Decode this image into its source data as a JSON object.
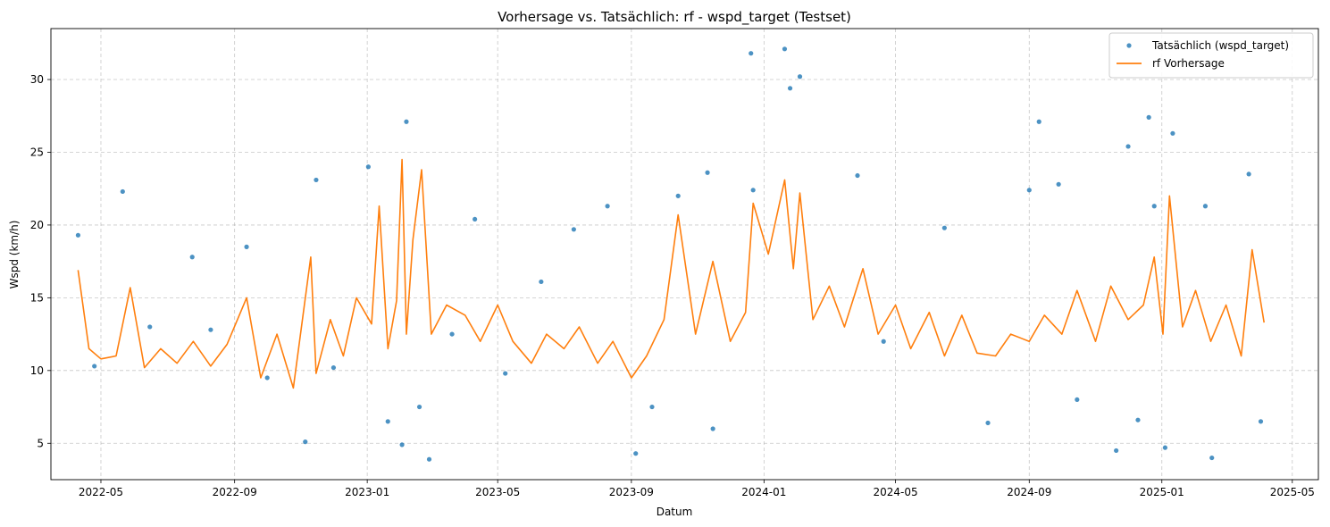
{
  "chart_data": {
    "type": "line",
    "title": "Vorhersage vs. Tatsächlich: rf - wspd_target (Testset)",
    "xlabel": "Datum",
    "ylabel": "Wspd (km/h)",
    "x_range": [
      "2022-03-16",
      "2025-05-25"
    ],
    "ylim": [
      2.5,
      33.5
    ],
    "x_ticks": [
      "2022-05",
      "2022-09",
      "2023-01",
      "2023-05",
      "2023-09",
      "2024-01",
      "2024-05",
      "2024-09",
      "2025-01",
      "2025-05"
    ],
    "x_tick_dates": [
      "2022-05-01",
      "2022-09-01",
      "2023-01-01",
      "2023-05-01",
      "2023-09-01",
      "2024-01-01",
      "2024-05-01",
      "2024-09-01",
      "2025-01-01",
      "2025-05-01"
    ],
    "y_ticks": [
      5,
      10,
      15,
      20,
      25,
      30
    ],
    "grid": true,
    "legend_position": "top-right",
    "series": [
      {
        "name": "Tatsächlich (wspd_target)",
        "kind": "scatter",
        "color": "#1f77b4",
        "x": [
          "2022-04-10",
          "2022-04-25",
          "2022-05-21",
          "2022-06-15",
          "2022-07-24",
          "2022-08-10",
          "2022-09-12",
          "2022-10-01",
          "2022-11-05",
          "2022-11-15",
          "2022-12-01",
          "2023-01-02",
          "2023-01-20",
          "2023-02-02",
          "2023-02-06",
          "2023-02-18",
          "2023-02-27",
          "2023-03-20",
          "2023-04-10",
          "2023-05-08",
          "2023-06-10",
          "2023-07-10",
          "2023-08-10",
          "2023-09-05",
          "2023-09-20",
          "2023-10-14",
          "2023-11-10",
          "2023-11-15",
          "2023-12-20",
          "2023-12-22",
          "2024-01-20",
          "2024-01-25",
          "2024-02-03",
          "2024-03-27",
          "2024-04-20",
          "2024-06-15",
          "2024-07-25",
          "2024-09-01",
          "2024-09-10",
          "2024-09-28",
          "2024-10-15",
          "2024-11-20",
          "2024-12-01",
          "2024-12-10",
          "2024-12-20",
          "2024-12-25",
          "2025-01-04",
          "2025-01-11",
          "2025-02-10",
          "2025-02-16",
          "2025-03-22",
          "2025-04-02"
        ],
        "y": [
          19.3,
          10.3,
          22.3,
          13.0,
          17.8,
          12.8,
          18.5,
          9.5,
          5.1,
          23.1,
          10.2,
          24.0,
          6.5,
          4.9,
          27.1,
          7.5,
          3.9,
          12.5,
          20.4,
          9.8,
          16.1,
          19.7,
          21.3,
          4.3,
          7.5,
          22.0,
          23.6,
          6.0,
          31.8,
          22.4,
          32.1,
          29.4,
          30.2,
          23.4,
          12.0,
          19.8,
          6.4,
          22.4,
          27.1,
          22.8,
          8.0,
          4.5,
          25.4,
          6.6,
          27.4,
          21.3,
          4.7,
          26.3,
          21.3,
          4.0,
          23.5,
          6.5
        ]
      },
      {
        "name": "rf Vorhersage",
        "kind": "line",
        "color": "#ff7f0e",
        "x": [
          "2022-04-10",
          "2022-04-20",
          "2022-05-01",
          "2022-05-15",
          "2022-05-28",
          "2022-06-10",
          "2022-06-25",
          "2022-07-10",
          "2022-07-25",
          "2022-08-10",
          "2022-08-25",
          "2022-09-12",
          "2022-09-25",
          "2022-10-10",
          "2022-10-25",
          "2022-11-10",
          "2022-11-15",
          "2022-11-28",
          "2022-12-10",
          "2022-12-22",
          "2023-01-05",
          "2023-01-12",
          "2023-01-20",
          "2023-01-28",
          "2023-02-02",
          "2023-02-06",
          "2023-02-12",
          "2023-02-20",
          "2023-03-01",
          "2023-03-15",
          "2023-04-01",
          "2023-04-15",
          "2023-05-01",
          "2023-05-15",
          "2023-06-01",
          "2023-06-15",
          "2023-07-01",
          "2023-07-15",
          "2023-08-01",
          "2023-08-15",
          "2023-09-01",
          "2023-09-15",
          "2023-10-01",
          "2023-10-14",
          "2023-10-30",
          "2023-11-15",
          "2023-12-01",
          "2023-12-15",
          "2023-12-22",
          "2024-01-05",
          "2024-01-20",
          "2024-01-28",
          "2024-02-03",
          "2024-02-15",
          "2024-03-01",
          "2024-03-15",
          "2024-04-01",
          "2024-04-15",
          "2024-05-01",
          "2024-05-15",
          "2024-06-01",
          "2024-06-15",
          "2024-07-01",
          "2024-07-15",
          "2024-08-01",
          "2024-08-15",
          "2024-09-01",
          "2024-09-15",
          "2024-10-01",
          "2024-10-15",
          "2024-11-01",
          "2024-11-15",
          "2024-12-01",
          "2024-12-15",
          "2024-12-25",
          "2025-01-02",
          "2025-01-08",
          "2025-01-20",
          "2025-02-01",
          "2025-02-15",
          "2025-03-01",
          "2025-03-15",
          "2025-03-25",
          "2025-04-05"
        ],
        "y": [
          16.9,
          11.5,
          10.8,
          11.0,
          15.7,
          10.2,
          11.5,
          10.5,
          12.0,
          10.3,
          11.8,
          15.0,
          9.5,
          12.5,
          8.8,
          17.8,
          9.8,
          13.5,
          11.0,
          15.0,
          13.2,
          21.3,
          11.5,
          14.8,
          24.5,
          12.5,
          19.0,
          23.8,
          12.5,
          14.5,
          13.8,
          12.0,
          14.5,
          12.0,
          10.5,
          12.5,
          11.5,
          13.0,
          10.5,
          12.0,
          9.5,
          11.0,
          13.5,
          20.7,
          12.5,
          17.5,
          12.0,
          14.0,
          21.5,
          18.0,
          23.1,
          17.0,
          22.2,
          13.5,
          15.8,
          13.0,
          17.0,
          12.5,
          14.5,
          11.5,
          14.0,
          11.0,
          13.8,
          11.2,
          11.0,
          12.5,
          12.0,
          13.8,
          12.5,
          15.5,
          12.0,
          15.8,
          13.5,
          14.5,
          17.8,
          12.5,
          22.0,
          13.0,
          15.5,
          12.0,
          14.5,
          11.0,
          18.3,
          13.3
        ]
      }
    ]
  }
}
